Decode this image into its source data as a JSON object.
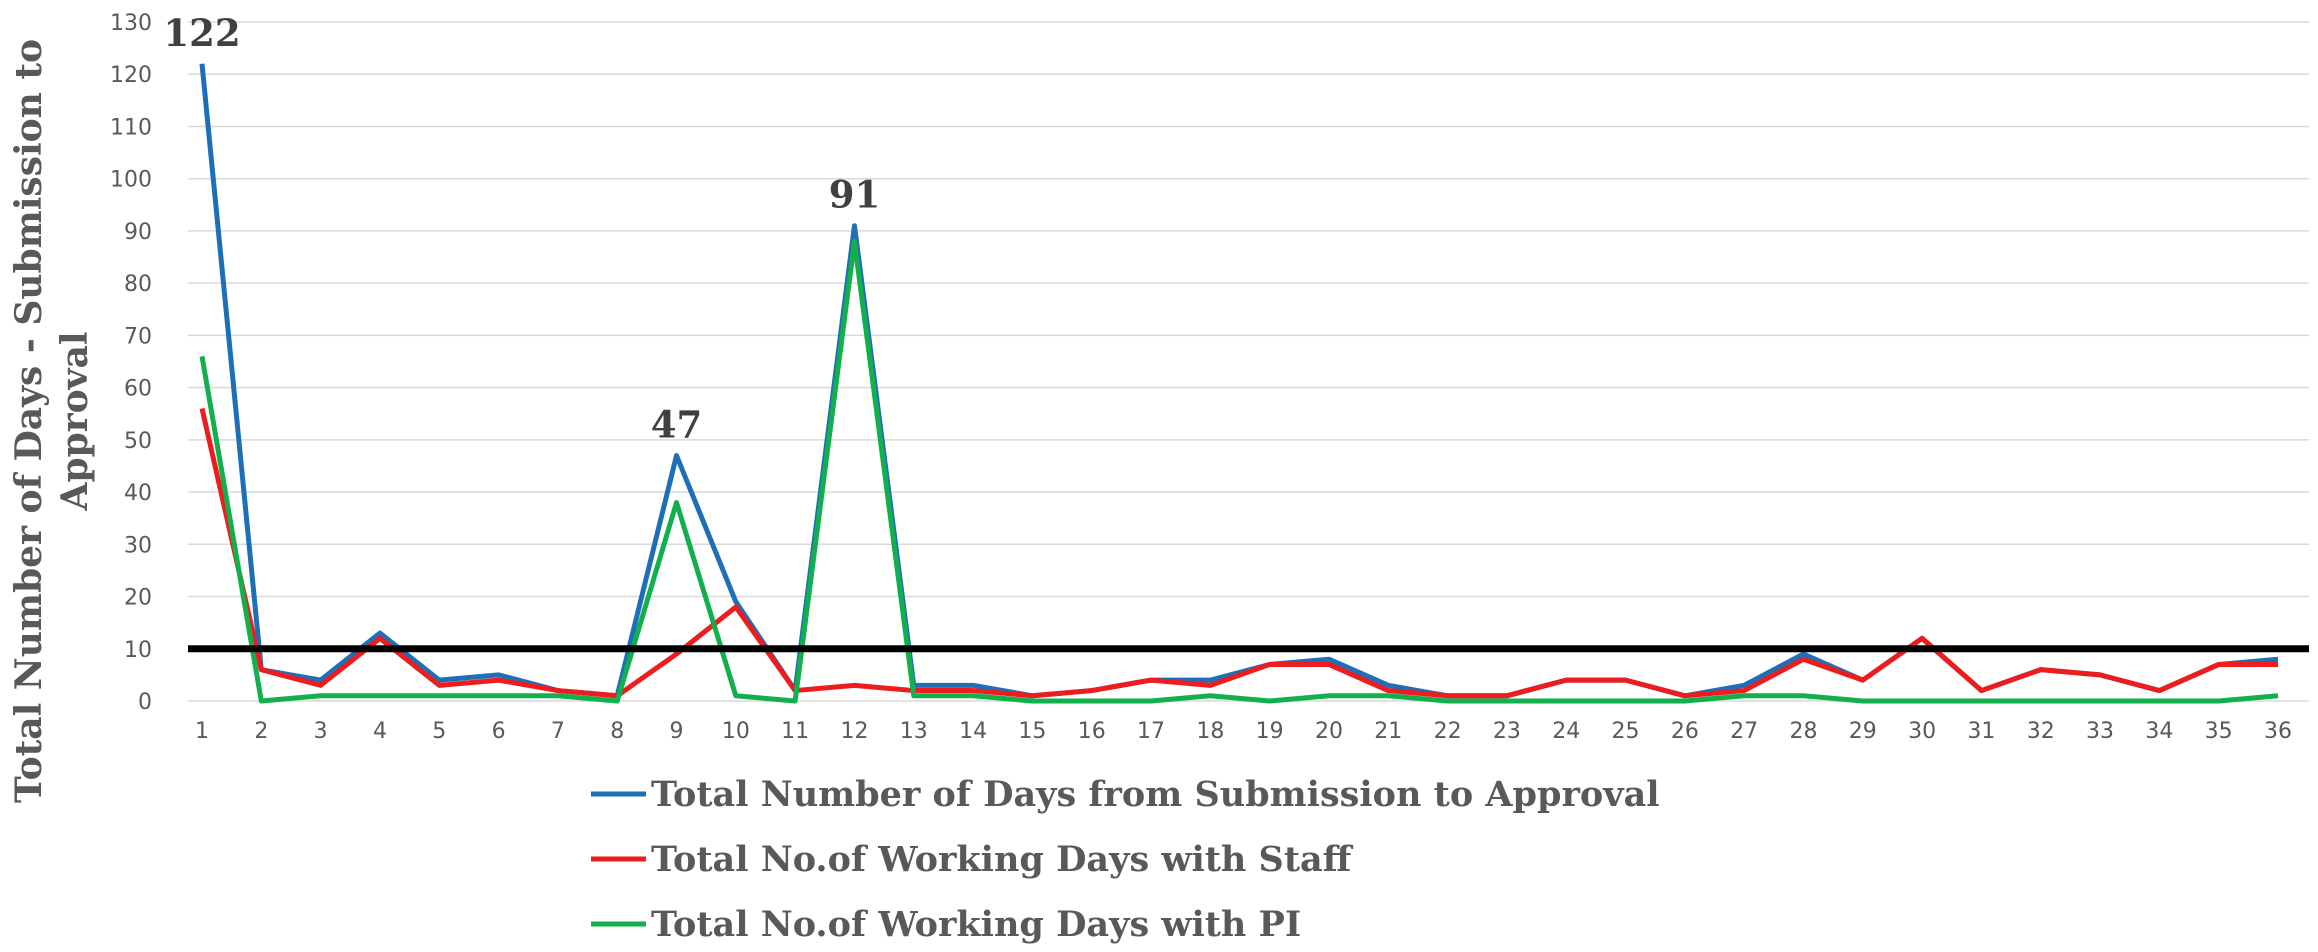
{
  "chart_data": {
    "type": "line",
    "y_label": "Total Number of Days - Submission to Approval",
    "categories": [
      "1",
      "2",
      "3",
      "4",
      "5",
      "6",
      "7",
      "8",
      "9",
      "10",
      "11",
      "12",
      "13",
      "14",
      "15",
      "16",
      "17",
      "18",
      "19",
      "20",
      "21",
      "22",
      "23",
      "24",
      "25",
      "26",
      "27",
      "28",
      "29",
      "30",
      "31",
      "32",
      "33",
      "34",
      "35",
      "36"
    ],
    "series": [
      {
        "name": "Total Number of Days from Submission to Approval",
        "color": "#1f6fb8",
        "values": [
          122,
          6,
          4,
          13,
          4,
          5,
          2,
          1,
          47,
          19,
          2,
          91,
          3,
          3,
          1,
          2,
          4,
          4,
          7,
          8,
          3,
          1,
          1,
          4,
          4,
          1,
          3,
          9,
          4,
          12,
          2,
          6,
          5,
          2,
          7,
          8
        ]
      },
      {
        "name": "Total No.of Working Days with Staff",
        "color": "#ee1c1c",
        "values": [
          56,
          6,
          3,
          12,
          3,
          4,
          2,
          1,
          9,
          18,
          2,
          3,
          2,
          2,
          1,
          2,
          4,
          3,
          7,
          7,
          2,
          1,
          1,
          4,
          4,
          1,
          2,
          8,
          4,
          12,
          2,
          6,
          5,
          2,
          7,
          7
        ]
      },
      {
        "name": "Total No.of Working Days with PI",
        "color": "#12b04c",
        "values": [
          66,
          0,
          1,
          1,
          1,
          1,
          1,
          0,
          38,
          1,
          0,
          88,
          1,
          1,
          0,
          0,
          0,
          1,
          0,
          1,
          1,
          0,
          0,
          0,
          0,
          0,
          1,
          1,
          0,
          0,
          0,
          0,
          0,
          0,
          0,
          1
        ]
      }
    ],
    "data_labels": {
      "series": 0,
      "indices": [
        0,
        8,
        11
      ]
    },
    "reference_line": {
      "value": 10,
      "color": "#000000"
    },
    "ylim": [
      0,
      130
    ],
    "yticks": [
      0,
      10,
      20,
      30,
      40,
      50,
      60,
      70,
      80,
      90,
      100,
      110,
      120,
      130
    ],
    "grid": true
  }
}
